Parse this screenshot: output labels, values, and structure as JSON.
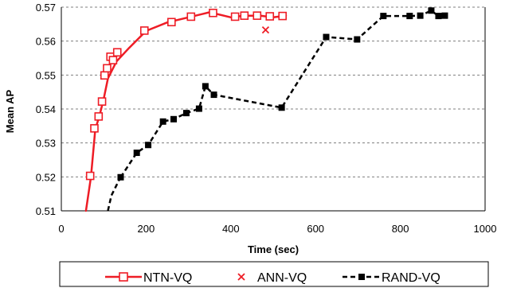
{
  "chart_data": {
    "type": "line",
    "title": "",
    "xlabel": "Time (sec)",
    "ylabel": "Mean AP",
    "xlim": [
      0,
      1000
    ],
    "ylim": [
      0.51,
      0.57
    ],
    "x_ticks": [
      0,
      200,
      400,
      600,
      800,
      1000
    ],
    "y_ticks": [
      0.51,
      0.52,
      0.53,
      0.54,
      0.55,
      0.56,
      0.57
    ],
    "x_tick_labels": [
      "0",
      "200",
      "400",
      "600",
      "800",
      "1000"
    ],
    "y_tick_labels": [
      "0.51",
      "0.52",
      "0.53",
      "0.54",
      "0.55",
      "0.56",
      "0.57"
    ],
    "grid": "horizontal dashed",
    "legend": "bottom",
    "series": [
      {
        "name": "NTN-VQ",
        "color": "#ee1c25",
        "style": "line with hollow square markers",
        "curve": [
          [
            58,
            0.51
          ],
          [
            70,
            0.52
          ],
          [
            80,
            0.534
          ],
          [
            90,
            0.538
          ],
          [
            100,
            0.543
          ],
          [
            110,
            0.549
          ],
          [
            130,
            0.554
          ],
          [
            160,
            0.558
          ],
          [
            200,
            0.563
          ],
          [
            250,
            0.5655
          ],
          [
            300,
            0.567
          ],
          [
            350,
            0.5685
          ],
          [
            400,
            0.567
          ],
          [
            430,
            0.5675
          ],
          [
            470,
            0.5675
          ],
          [
            500,
            0.567
          ],
          [
            530,
            0.5675
          ]
        ],
        "x": [
          68,
          78,
          88,
          96,
          102,
          108,
          116,
          122,
          132,
          196,
          260,
          306,
          358,
          410,
          432,
          462,
          492,
          522
        ],
        "y": [
          0.5203,
          0.5343,
          0.5378,
          0.5422,
          0.5499,
          0.552,
          0.5554,
          0.5544,
          0.5567,
          0.5631,
          0.5656,
          0.5672,
          0.5683,
          0.5672,
          0.5675,
          0.5675,
          0.5673,
          0.5674
        ]
      },
      {
        "name": "ANN-VQ",
        "color": "#ee1c25",
        "style": "x marker",
        "x": [
          482
        ],
        "y": [
          0.5633
        ]
      },
      {
        "name": "RAND-VQ",
        "color": "#000000",
        "style": "dashed line with filled square markers",
        "curve": [
          [
            110,
            0.51
          ],
          [
            118,
            0.5145
          ],
          [
            140,
            0.52
          ]
        ],
        "x": [
          140,
          178,
          205,
          240,
          265,
          295,
          325,
          340,
          360,
          520,
          625,
          698,
          760,
          822,
          847,
          873,
          890,
          905
        ],
        "y": [
          0.5199,
          0.5271,
          0.5294,
          0.5363,
          0.537,
          0.5388,
          0.5401,
          0.5467,
          0.5442,
          0.5404,
          0.5612,
          0.5605,
          0.5674,
          0.5674,
          0.5675,
          0.569,
          0.5674,
          0.5675
        ]
      }
    ]
  }
}
